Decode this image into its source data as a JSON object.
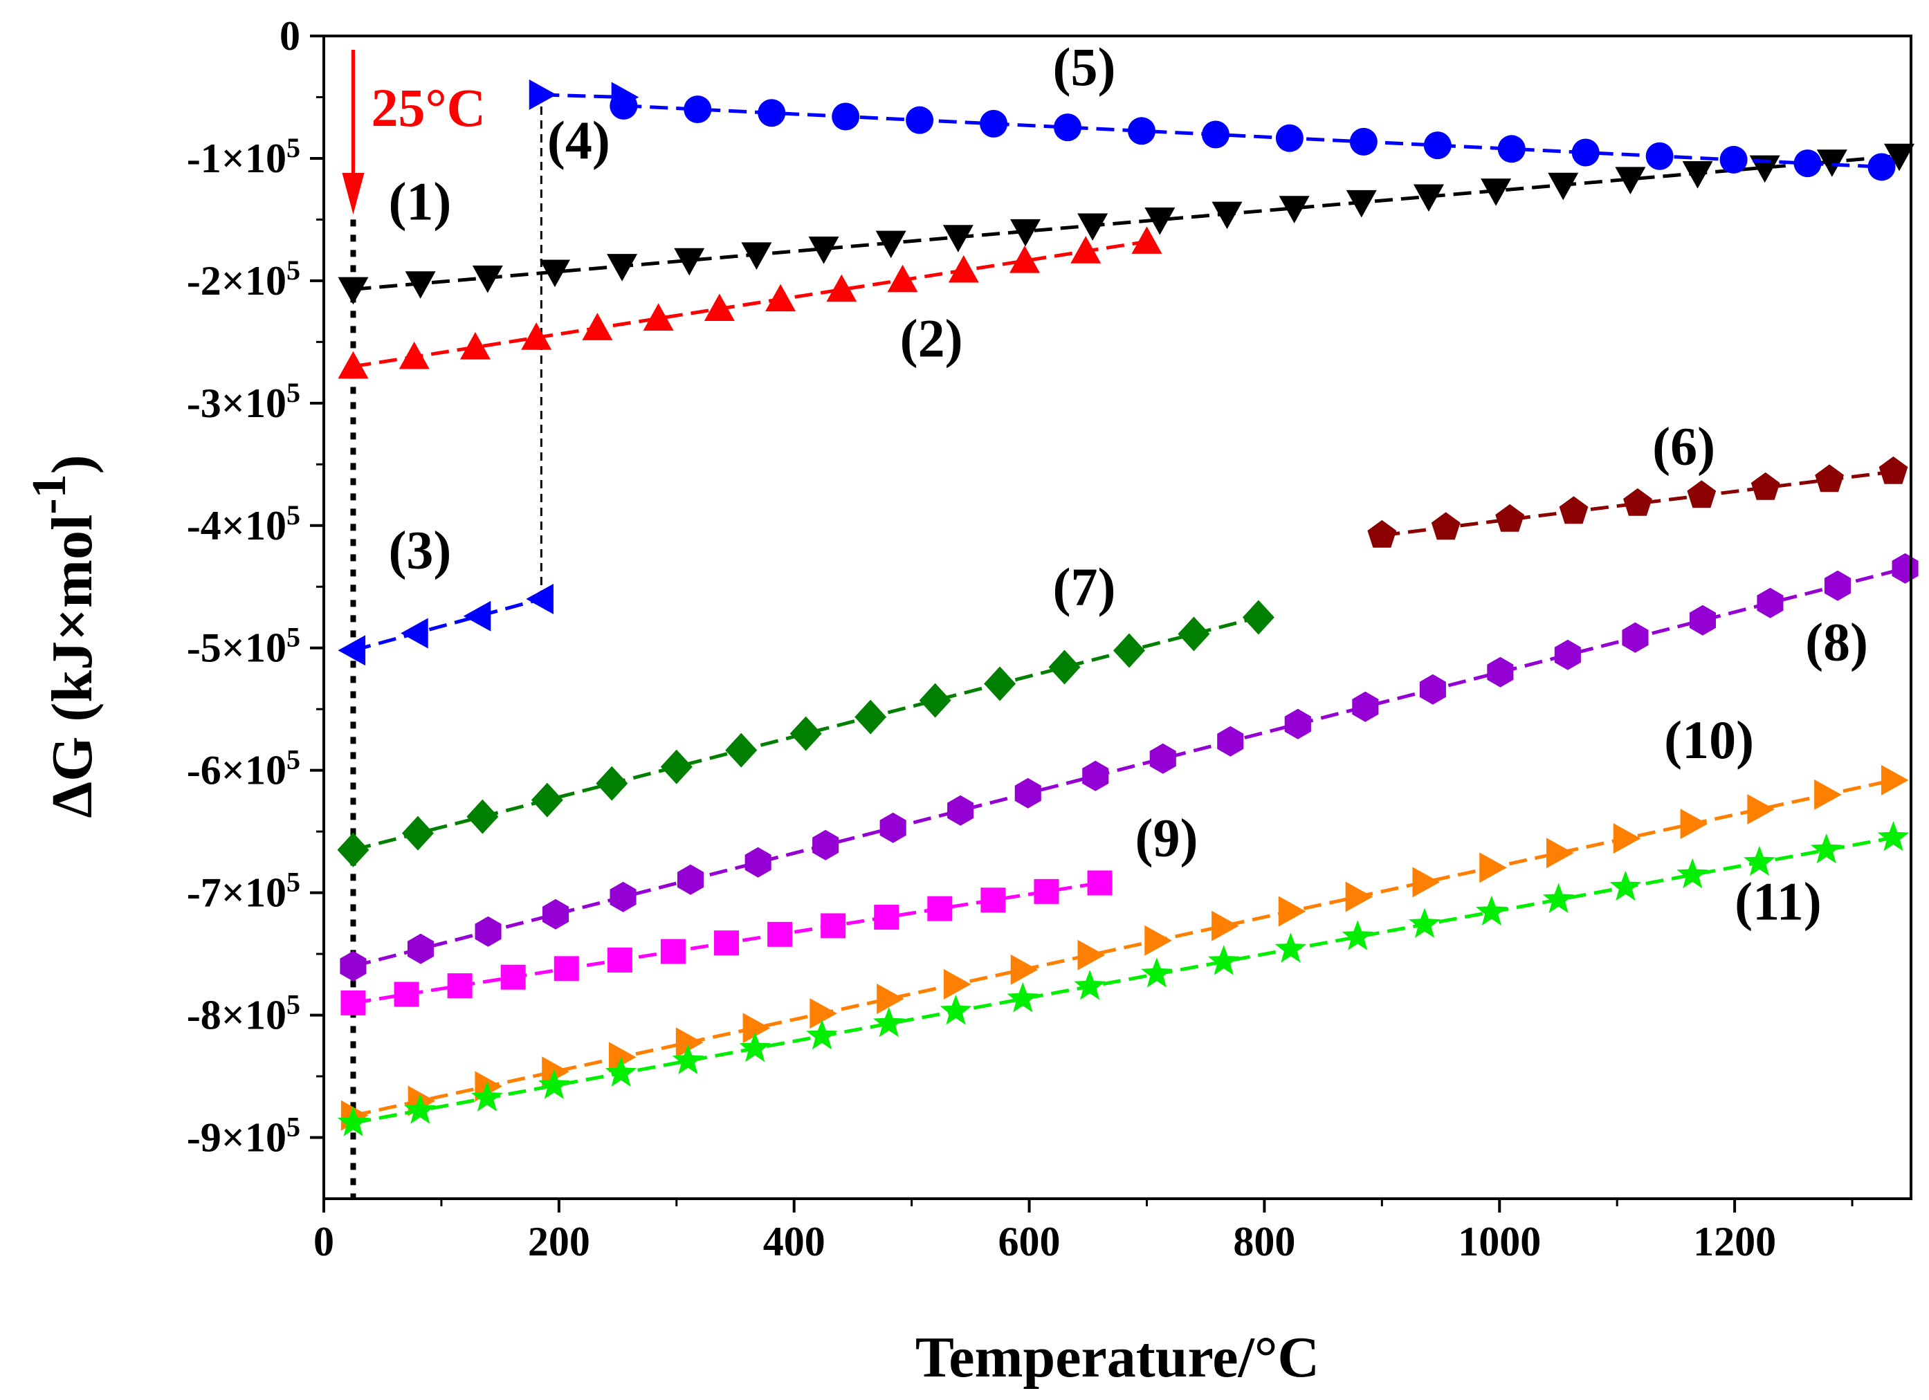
{
  "chart_data": {
    "type": "line",
    "title": "",
    "xlabel": "Temperature/°C",
    "ylabel_main": "ΔG (kJ×mol",
    "ylabel_sup": "-1",
    "ylabel_close": ")",
    "xlim": [
      0,
      1350
    ],
    "ylim": [
      -950000,
      0
    ],
    "x_ticks": [
      0,
      200,
      400,
      600,
      800,
      1000,
      1200
    ],
    "x_tick_labels": [
      "0",
      "200",
      "400",
      "600",
      "800",
      "1000",
      "1200"
    ],
    "y_ticks": [
      0,
      -100000,
      -200000,
      -300000,
      -400000,
      -500000,
      -600000,
      -700000,
      -800000,
      -900000
    ],
    "y_tick_labels": [
      {
        "mant": "0",
        "exp": ""
      },
      {
        "mant": "-1×10",
        "exp": "5"
      },
      {
        "mant": "-2×10",
        "exp": "5"
      },
      {
        "mant": "-3×10",
        "exp": "5"
      },
      {
        "mant": "-4×10",
        "exp": "5"
      },
      {
        "mant": "-5×10",
        "exp": "5"
      },
      {
        "mant": "-6×10",
        "exp": "5"
      },
      {
        "mant": "-7×10",
        "exp": "5"
      },
      {
        "mant": "-8×10",
        "exp": "5"
      },
      {
        "mant": "-9×10",
        "exp": "5"
      }
    ],
    "annotation": {
      "text": "25°C",
      "x": 25,
      "color": "#ff0000"
    },
    "reference_line": {
      "x": 25,
      "style": "dotted"
    },
    "step_connector": {
      "x": 185,
      "from_y": -460000,
      "to_y": -48000,
      "style": "dashed"
    },
    "series": [
      {
        "name": "(1)",
        "color": "#000000",
        "marker": "triangle-down",
        "x_range": [
          25,
          1340
        ],
        "y_range": [
          -207000,
          -98000
        ],
        "n": 24,
        "label_x": 55,
        "label_y": -150000
      },
      {
        "name": "(2)",
        "color": "#ff0000",
        "marker": "triangle-up",
        "x_range": [
          25,
          700
        ],
        "y_range": [
          -270000,
          -168000
        ],
        "n": 14,
        "label_x": 490,
        "label_y": -262000
      },
      {
        "name": "(3)",
        "color": "#0000ff",
        "marker": "triangle-left",
        "x_range": [
          25,
          185
        ],
        "y_range": [
          -502000,
          -460000
        ],
        "n": 4,
        "label_x": 55,
        "label_y": -435000
      },
      {
        "name": "(4)",
        "color": "#0000ff",
        "marker": "triangle-right",
        "x_range": [
          185,
          255
        ],
        "y_range": [
          -48000,
          -50000
        ],
        "n": 2,
        "label_x": 190,
        "label_y": -100000
      },
      {
        "name": "(5)",
        "color": "#0000ff",
        "marker": "circle",
        "x_range": [
          255,
          1325
        ],
        "y_range": [
          -57000,
          -107000
        ],
        "n": 18,
        "label_x": 620,
        "label_y": -40000
      },
      {
        "name": "(6)",
        "color": "#8b0000",
        "marker": "pentagon",
        "x_range": [
          900,
          1335
        ],
        "y_range": [
          -408000,
          -356000
        ],
        "n": 9,
        "label_x": 1130,
        "label_y": -350000
      },
      {
        "name": "(7)",
        "color": "#008000",
        "marker": "diamond",
        "x_range": [
          25,
          795
        ],
        "y_range": [
          -665000,
          -475000
        ],
        "n": 15,
        "label_x": 620,
        "label_y": -465000
      },
      {
        "name": "(8)",
        "color": "#9400d3",
        "marker": "hexagon",
        "x_range": [
          25,
          1345
        ],
        "y_range": [
          -760000,
          -435000
        ],
        "n": 24,
        "label_x": 1260,
        "label_y": -510000
      },
      {
        "name": "(9)",
        "color": "#ff00ff",
        "marker": "square",
        "x_range": [
          25,
          660
        ],
        "y_range": [
          -790000,
          -692000
        ],
        "n": 15,
        "label_x": 690,
        "label_y": -670000
      },
      {
        "name": "(10)",
        "color": "#ff7f00",
        "marker": "triangle-right",
        "x_range": [
          25,
          1335
        ],
        "y_range": [
          -882000,
          -608000
        ],
        "n": 24,
        "label_x": 1140,
        "label_y": -590000
      },
      {
        "name": "(11)",
        "color": "#00ee00",
        "marker": "star",
        "x_range": [
          25,
          1335
        ],
        "y_range": [
          -888000,
          -655000
        ],
        "n": 24,
        "label_x": 1200,
        "label_y": -722000
      }
    ]
  }
}
